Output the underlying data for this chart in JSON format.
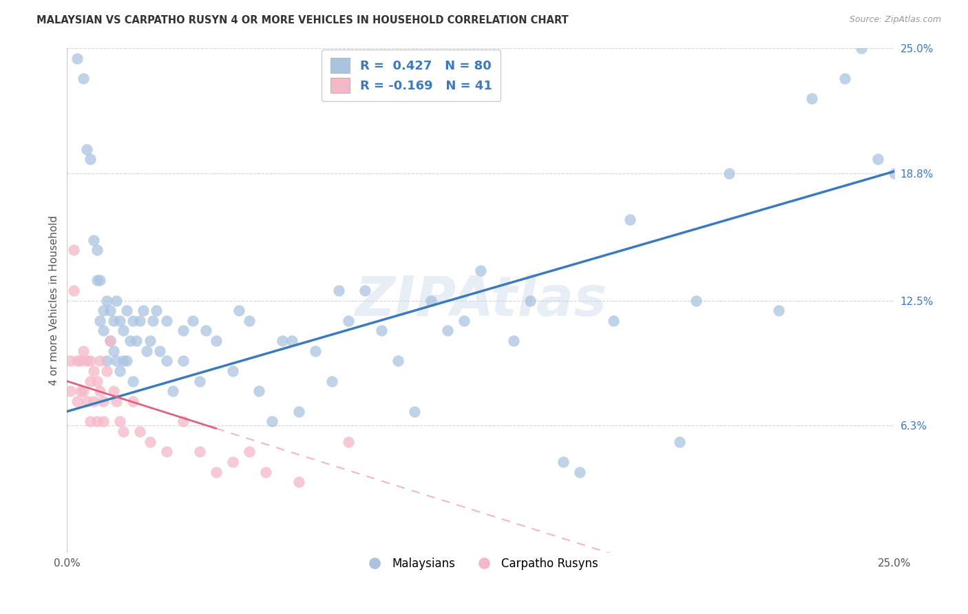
{
  "title": "MALAYSIAN VS CARPATHO RUSYN 4 OR MORE VEHICLES IN HOUSEHOLD CORRELATION CHART",
  "source": "Source: ZipAtlas.com",
  "ylabel": "4 or more Vehicles in Household",
  "xlim": [
    0,
    25
  ],
  "ylim": [
    0,
    25
  ],
  "blue_color": "#aac4e0",
  "pink_color": "#f5b8c8",
  "blue_line_color": "#3a7abf",
  "pink_line_color": "#e06080",
  "watermark": "ZIPAtlas",
  "blue_intercept": 7.0,
  "blue_slope": 0.476,
  "pink_intercept": 8.5,
  "pink_slope": -0.52,
  "blue_x": [
    0.3,
    0.5,
    0.6,
    0.7,
    0.8,
    0.9,
    0.9,
    1.0,
    1.0,
    1.1,
    1.1,
    1.2,
    1.2,
    1.3,
    1.3,
    1.4,
    1.4,
    1.5,
    1.5,
    1.6,
    1.6,
    1.7,
    1.7,
    1.8,
    1.8,
    1.9,
    2.0,
    2.0,
    2.1,
    2.2,
    2.3,
    2.4,
    2.5,
    2.6,
    2.7,
    2.8,
    3.0,
    3.0,
    3.2,
    3.5,
    3.5,
    4.0,
    4.5,
    5.0,
    5.5,
    5.8,
    6.2,
    6.5,
    7.0,
    7.5,
    8.0,
    8.5,
    9.0,
    10.0,
    10.5,
    11.5,
    12.5,
    14.0,
    15.5,
    17.0,
    18.5,
    20.0,
    21.5,
    22.5,
    23.5,
    24.0,
    24.5,
    25.0,
    3.8,
    4.2,
    5.2,
    6.8,
    8.2,
    9.5,
    11.0,
    12.0,
    13.5,
    15.0,
    16.5,
    19.0
  ],
  "blue_y": [
    24.5,
    23.5,
    20.0,
    19.5,
    15.5,
    15.0,
    13.5,
    13.5,
    11.5,
    12.0,
    11.0,
    12.5,
    9.5,
    12.0,
    10.5,
    11.5,
    10.0,
    12.5,
    9.5,
    11.5,
    9.0,
    11.0,
    9.5,
    12.0,
    9.5,
    10.5,
    11.5,
    8.5,
    10.5,
    11.5,
    12.0,
    10.0,
    10.5,
    11.5,
    12.0,
    10.0,
    11.5,
    9.5,
    8.0,
    11.0,
    9.5,
    8.5,
    10.5,
    9.0,
    11.5,
    8.0,
    6.5,
    10.5,
    7.0,
    10.0,
    8.5,
    11.5,
    13.0,
    9.5,
    7.0,
    11.0,
    14.0,
    12.5,
    4.0,
    16.5,
    5.5,
    18.8,
    12.0,
    22.5,
    23.5,
    25.0,
    19.5,
    18.8,
    11.5,
    11.0,
    12.0,
    10.5,
    13.0,
    11.0,
    12.5,
    11.5,
    10.5,
    4.5,
    11.5,
    12.5
  ],
  "pink_x": [
    0.1,
    0.1,
    0.2,
    0.2,
    0.3,
    0.3,
    0.4,
    0.4,
    0.5,
    0.5,
    0.6,
    0.6,
    0.7,
    0.7,
    0.7,
    0.8,
    0.8,
    0.9,
    0.9,
    1.0,
    1.0,
    1.1,
    1.1,
    1.2,
    1.3,
    1.4,
    1.5,
    1.6,
    1.7,
    2.0,
    2.2,
    2.5,
    3.0,
    3.5,
    4.0,
    4.5,
    5.0,
    5.5,
    6.0,
    7.0,
    8.5
  ],
  "pink_y": [
    9.5,
    8.0,
    15.0,
    13.0,
    9.5,
    7.5,
    9.5,
    8.0,
    10.0,
    8.0,
    9.5,
    7.5,
    9.5,
    8.5,
    6.5,
    9.0,
    7.5,
    8.5,
    6.5,
    8.0,
    9.5,
    7.5,
    6.5,
    9.0,
    10.5,
    8.0,
    7.5,
    6.5,
    6.0,
    7.5,
    6.0,
    5.5,
    5.0,
    6.5,
    5.0,
    4.0,
    4.5,
    5.0,
    4.0,
    3.5,
    5.5
  ]
}
